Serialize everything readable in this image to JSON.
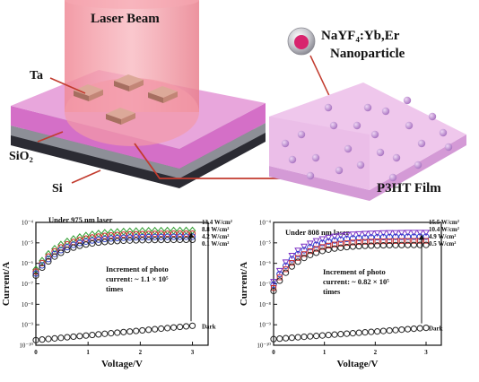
{
  "diagram": {
    "laser_label": "Laser Beam",
    "ta_label": "Ta",
    "sio2_label": "SiO₂",
    "si_label": "Si",
    "nanoparticle_label_line1": "NaYF₄:Yb,Er",
    "nanoparticle_label_line2": "Nanoparticle",
    "film_label": "P3HT Film",
    "colors": {
      "laser": "#f6a0aa",
      "film_pink": "#e58fd8",
      "film_light": "#eac0ea",
      "particle": "#c48ad6",
      "connector": "#c23b2e"
    }
  },
  "chart_data": [
    {
      "type": "line",
      "annotation": "Under 975 nm laser",
      "increment_text": [
        "Increment of photo",
        "current: ~ 1.1 × 10⁵",
        "times"
      ],
      "xlabel": "Voltage/V",
      "ylabel": "Current/A",
      "xlim": [
        0,
        3.3
      ],
      "ylim_log10": [
        -10,
        -4
      ],
      "x_ticks": [
        "0",
        "1",
        "2",
        "3"
      ],
      "y_ticks": [
        "10⁻¹⁰",
        "10⁻⁹",
        "10⁻⁸",
        "10⁻⁷",
        "10⁻⁶",
        "10⁻⁵",
        "10⁻⁴"
      ],
      "series": [
        {
          "name": "13.4 W/cm²",
          "color": "#2e9d2e",
          "marker": "diamond",
          "log10_start": -6.3,
          "log10_end": -4.4
        },
        {
          "name": "8.8 W/cm²",
          "color": "#cc2a2a",
          "marker": "circle",
          "log10_start": -6.4,
          "log10_end": -4.55
        },
        {
          "name": "4.2 W/cm²",
          "color": "#2a3fcc",
          "marker": "circle",
          "log10_start": -6.5,
          "log10_end": -4.7
        },
        {
          "name": "0.1 W/cm²",
          "color": "#222222",
          "marker": "circle",
          "log10_start": -6.6,
          "log10_end": -4.85
        },
        {
          "name": "Dark",
          "color": "#222222",
          "marker": "circle",
          "log10_start": -9.75,
          "log10_end": -9.05
        }
      ]
    },
    {
      "type": "line",
      "annotation": "Under 808 nm laser",
      "increment_text": [
        "Increment of photo",
        "current: ~ 0.82 × 10⁵",
        "times"
      ],
      "xlabel": "Voltage/V",
      "ylabel": "Current/A",
      "xlim": [
        0,
        3.3
      ],
      "ylim_log10": [
        -10,
        -4
      ],
      "x_ticks": [
        "0",
        "1",
        "2",
        "3"
      ],
      "y_ticks": [
        "10⁻¹⁰",
        "10⁻⁹",
        "10⁻⁸",
        "10⁻⁷",
        "10⁻⁶",
        "10⁻⁵",
        "10⁻⁴"
      ],
      "series": [
        {
          "name": "15.5 W/cm²",
          "color": "#7a2fc4",
          "marker": "triangle-down",
          "log10_start": -6.9,
          "log10_end": -4.5
        },
        {
          "name": "10.4 W/cm²",
          "color": "#2a3fcc",
          "marker": "circle",
          "log10_start": -7.05,
          "log10_end": -4.7
        },
        {
          "name": "4.9 W/cm²",
          "color": "#cc2a2a",
          "marker": "square",
          "log10_start": -7.2,
          "log10_end": -4.9
        },
        {
          "name": "0.5 W/cm²",
          "color": "#222222",
          "marker": "circle",
          "log10_start": -7.35,
          "log10_end": -5.1
        },
        {
          "name": "Dark",
          "color": "#222222",
          "marker": "circle",
          "log10_start": -9.7,
          "log10_end": -9.15
        }
      ]
    }
  ]
}
